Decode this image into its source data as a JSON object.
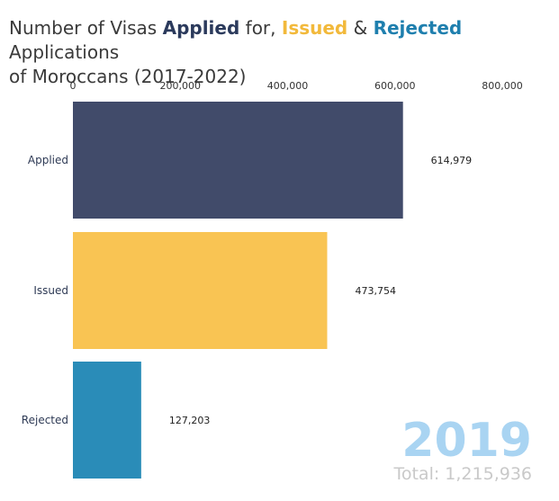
{
  "title": {
    "part1": "Number of Visas ",
    "applied": "Applied",
    "part2": " for, ",
    "issued": "Issued",
    "part3": " & ",
    "rejected": "Rejected",
    "part4": " Applications",
    "line2": "of Moroccans (2017-2022)"
  },
  "colors": {
    "applied": "#414b6a",
    "issued": "#f9c453",
    "rejected": "#2a8cb8"
  },
  "chart_data": {
    "type": "bar",
    "orientation": "horizontal",
    "title": "Number of Visas Applied for, Issued & Rejected Applications of Moroccans (2017-2022)",
    "categories": [
      "Applied",
      "Issued",
      "Rejected"
    ],
    "values": [
      614979,
      473754,
      127203
    ],
    "value_labels": [
      "614,979",
      "473,754",
      "127,203"
    ],
    "xlim": [
      0,
      800000
    ],
    "x_ticks": [
      0,
      200000,
      400000,
      600000,
      800000
    ],
    "x_tick_labels": [
      "0",
      "200,000",
      "400,000",
      "600,000",
      "800,000"
    ],
    "axis_position": "top",
    "grid": false,
    "year": "2019",
    "total_label": "Total: 1,215,936"
  }
}
